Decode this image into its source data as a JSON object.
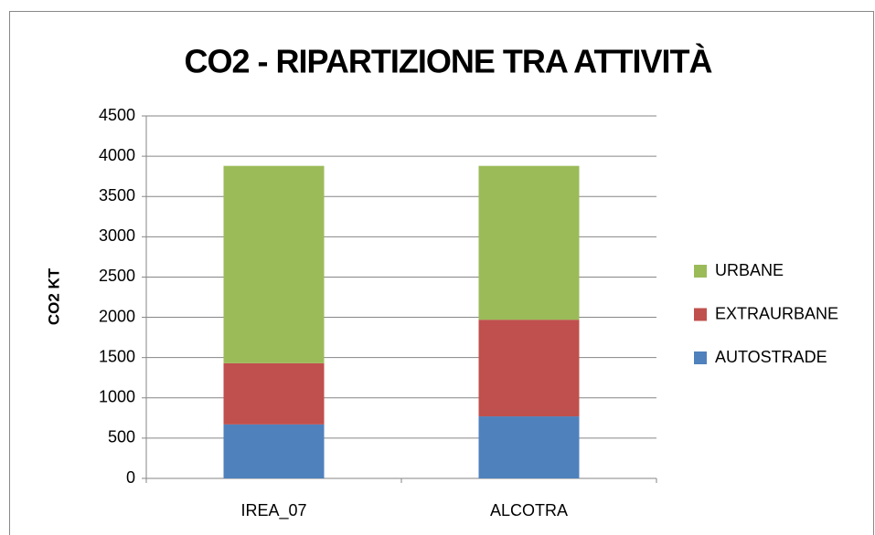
{
  "chart_data": {
    "type": "stacked_bar",
    "title": "CO2 - RIPARTIZIONE TRA ATTIVITÀ",
    "y_label": "CO2 KT",
    "categories": [
      "IREA_07",
      "ALCOTRA"
    ],
    "series": [
      {
        "name": "AUTOSTRADE",
        "color": "#4f81bd",
        "values": [
          670,
          770
        ]
      },
      {
        "name": "EXTRAURBANE",
        "color": "#c0504d",
        "values": [
          760,
          1200
        ]
      },
      {
        "name": "URBANE",
        "color": "#9bbb59",
        "values": [
          2450,
          1910
        ]
      }
    ],
    "ylim": [
      0,
      4500
    ],
    "yticks": [
      0,
      500,
      1000,
      1500,
      2000,
      2500,
      3000,
      3500,
      4000,
      4500
    ],
    "grid": true,
    "legend": "right"
  }
}
